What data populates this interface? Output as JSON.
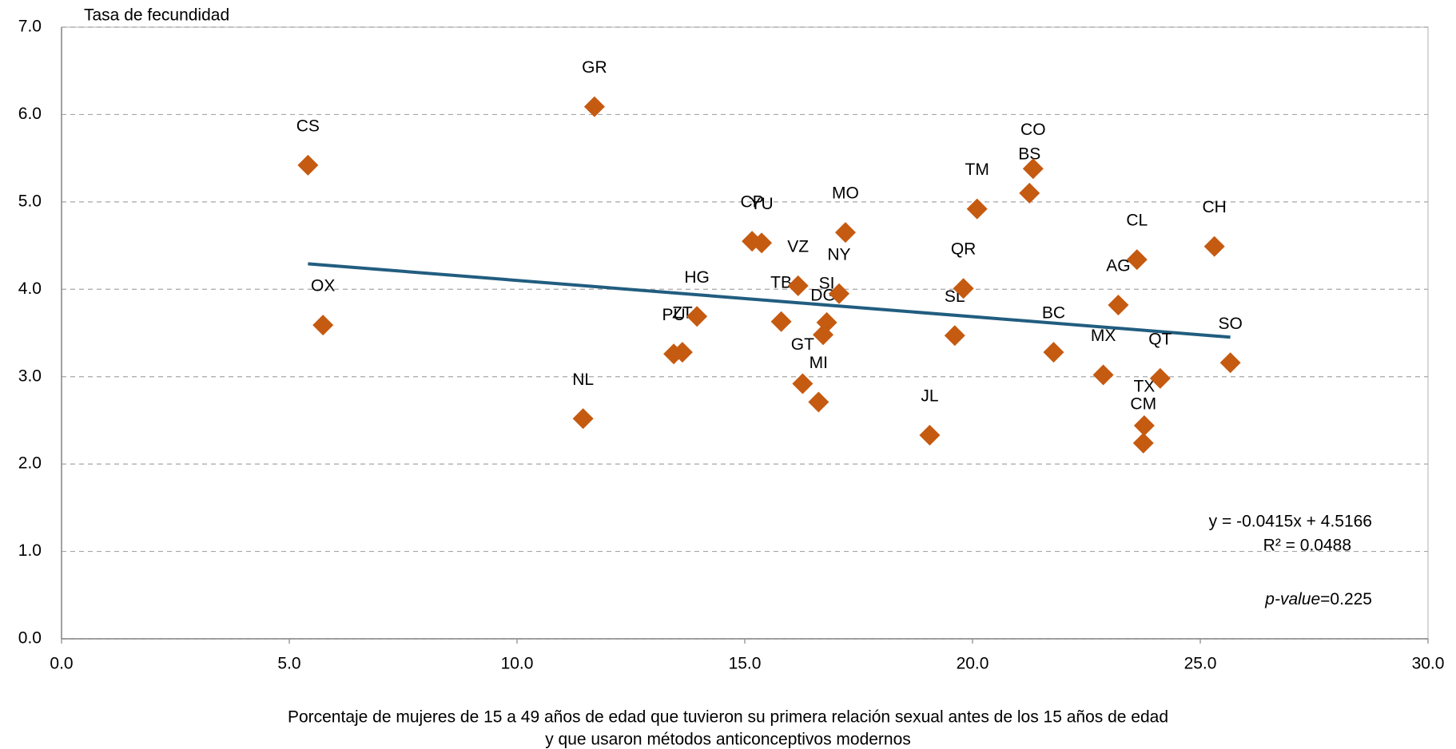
{
  "chart_data": {
    "type": "scatter",
    "ylabel": "Tasa de fecundidad",
    "xlabel": [
      "Porcentaje de mujeres de 15 a 49 años de edad que tuvieron su primera relación sexual antes de los 15 años de edad",
      "y que usaron métodos anticonceptivos modernos"
    ],
    "color": "#c55a11",
    "grid": true,
    "xlim": [
      0,
      30
    ],
    "ylim": [
      0,
      7
    ],
    "xticks": [
      {
        "value": 0,
        "label": "0.0"
      },
      {
        "value": 5,
        "label": "5.0"
      },
      {
        "value": 10,
        "label": "10.0"
      },
      {
        "value": 15,
        "label": "15.0"
      },
      {
        "value": 20,
        "label": "20.0"
      },
      {
        "value": 25,
        "label": "25.0"
      },
      {
        "value": 30,
        "label": "30.0"
      }
    ],
    "yticks": [
      {
        "value": 0,
        "label": "0.0"
      },
      {
        "value": 1,
        "label": "1.0"
      },
      {
        "value": 2,
        "label": "2.0"
      },
      {
        "value": 3,
        "label": "3.0"
      },
      {
        "value": 4,
        "label": "4.0"
      },
      {
        "value": 5,
        "label": "5.0"
      },
      {
        "value": 6,
        "label": "6.0"
      },
      {
        "value": 7,
        "label": "7.0"
      }
    ],
    "point_labels": [
      "CS",
      "OX",
      "GR",
      "NL",
      "PU",
      "ZT",
      "HG",
      "CP",
      "YU",
      "TB",
      "VZ",
      "GT",
      "MI",
      "SI",
      "DG",
      "NY",
      "MO",
      "JL",
      "SL",
      "QR",
      "TM",
      "BS",
      "CO",
      "BC",
      "MX",
      "AG",
      "CL",
      "TX",
      "CM",
      "QT",
      "CH",
      "SO"
    ],
    "x": [
      5.41,
      5.74,
      11.7,
      11.45,
      13.44,
      13.63,
      13.95,
      15.16,
      15.37,
      15.8,
      16.17,
      16.27,
      16.62,
      16.8,
      16.72,
      17.07,
      17.21,
      19.06,
      19.61,
      19.8,
      20.1,
      21.25,
      21.33,
      21.78,
      22.87,
      23.2,
      23.61,
      23.77,
      23.75,
      24.12,
      25.31,
      25.66
    ],
    "y": [
      5.42,
      3.59,
      6.09,
      2.52,
      3.26,
      3.28,
      3.69,
      4.55,
      4.53,
      3.63,
      4.04,
      2.92,
      2.71,
      3.62,
      3.48,
      3.95,
      4.65,
      2.33,
      3.47,
      4.01,
      4.92,
      5.1,
      5.38,
      3.28,
      3.02,
      3.82,
      4.34,
      2.44,
      2.24,
      2.98,
      4.49,
      3.16
    ],
    "trendline": {
      "slope": -0.0415,
      "intercept": 4.5166,
      "color": "#215d7f",
      "equation": "y = -0.0415x + 4.5166",
      "r_squared": "R² = 0.0488"
    },
    "p_value": {
      "label": "p-value",
      "text": "=0.225"
    }
  }
}
